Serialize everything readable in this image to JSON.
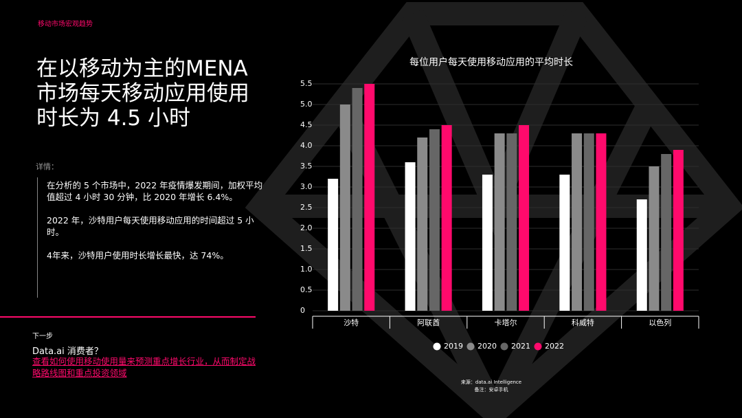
{
  "section": "移动市场宏观趋势",
  "headline": [
    "在以移动为主的MENA",
    "市场每天移动应用使用",
    "时长为 4.5 小时"
  ],
  "details_label": "详情：",
  "details": [
    "在分析的 5 个市场中，2022 年疫情爆发期间，加权平均值超过 4 小时 30 分钟，比 2020 年增长 6.4%。",
    "2022 年，沙特用户每天使用移动应用的时间超过 5 小时。",
    "4年来，沙特用户使用时长增长最快，达 74%。"
  ],
  "next_label": "下一步",
  "next_title": "Data.ai 消费者？",
  "next_link": "查看如何使用移动使用量来预测重点增长行业，从而制定战略路线图和重点投资领域",
  "source": "来源：data.ai Intelligence",
  "note": "备注：安卓手机",
  "chart_data": {
    "type": "bar",
    "title": "每位用户每天使用移动应用的平均时长",
    "categories": [
      "沙特",
      "阿联酋",
      "卡塔尔",
      "科威特",
      "以色列"
    ],
    "series": [
      {
        "name": "2019",
        "color": "#ffffff",
        "values": [
          3.2,
          3.6,
          3.3,
          3.3,
          2.7
        ]
      },
      {
        "name": "2020",
        "color": "#8a8a8a",
        "values": [
          5.0,
          4.2,
          4.3,
          4.3,
          3.5
        ]
      },
      {
        "name": "2021",
        "color": "#666666",
        "values": [
          5.4,
          4.4,
          4.3,
          4.3,
          3.8
        ]
      },
      {
        "name": "2022",
        "color": "#ff0a6c",
        "values": [
          5.5,
          4.5,
          4.5,
          4.3,
          3.9
        ]
      }
    ],
    "ylim": [
      0,
      5.5
    ],
    "yticks": [
      0,
      0.5,
      {
        "value": 1,
        "label": "1.0"
      },
      1.5,
      {
        "value": 2,
        "label": "2.0"
      },
      2.5,
      {
        "value": 3,
        "label": "3.0"
      },
      3.5,
      {
        "value": 4,
        "label": "4.0"
      },
      4.5,
      {
        "value": 5,
        "label": "5.0"
      },
      5.5
    ],
    "grid": true,
    "legend": "bottom"
  }
}
